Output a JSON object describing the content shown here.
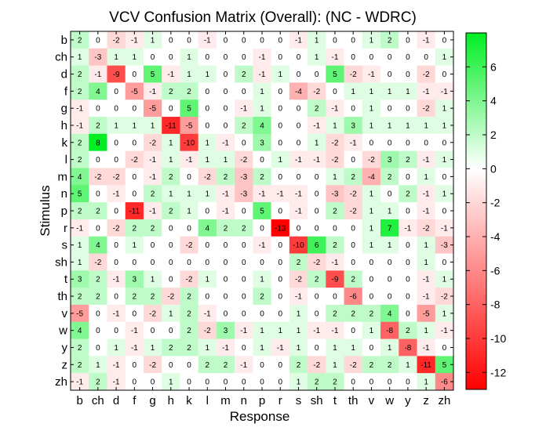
{
  "chart_data": {
    "type": "heatmap",
    "title": "VCV Confusion Matrix (Overall): (NC - WDRC)",
    "xlabel": "Response",
    "ylabel": "Stimulus",
    "rows": [
      "b",
      "ch",
      "d",
      "f",
      "g",
      "h",
      "k",
      "l",
      "m",
      "n",
      "p",
      "r",
      "s",
      "sh",
      "t",
      "th",
      "v",
      "w",
      "y",
      "z",
      "zh"
    ],
    "cols": [
      "b",
      "ch",
      "d",
      "f",
      "g",
      "h",
      "k",
      "l",
      "m",
      "n",
      "p",
      "r",
      "s",
      "sh",
      "t",
      "th",
      "v",
      "w",
      "y",
      "z",
      "zh"
    ],
    "values": [
      [
        2,
        0,
        -2,
        -1,
        1,
        0,
        0,
        -1,
        0,
        0,
        0,
        0,
        -1,
        1,
        0,
        0,
        1,
        2,
        0,
        -1,
        0
      ],
      [
        1,
        -3,
        1,
        1,
        0,
        0,
        1,
        0,
        0,
        0,
        -1,
        0,
        0,
        1,
        -1,
        0,
        0,
        0,
        0,
        0,
        1
      ],
      [
        2,
        -1,
        -9,
        0,
        5,
        -1,
        1,
        1,
        0,
        2,
        -1,
        1,
        0,
        0,
        5,
        -2,
        -1,
        0,
        0,
        -2,
        0
      ],
      [
        2,
        4,
        0,
        -5,
        -1,
        2,
        2,
        0,
        0,
        0,
        1,
        0,
        -4,
        -2,
        0,
        1,
        1,
        1,
        1,
        -1,
        -1
      ],
      [
        -1,
        0,
        0,
        0,
        -5,
        0,
        5,
        0,
        0,
        -1,
        1,
        0,
        0,
        2,
        -1,
        0,
        1,
        0,
        0,
        -2,
        1
      ],
      [
        -1,
        2,
        1,
        1,
        1,
        -11,
        -5,
        0,
        0,
        2,
        4,
        0,
        0,
        -1,
        1,
        3,
        1,
        1,
        1,
        1,
        1
      ],
      [
        2,
        8,
        0,
        0,
        -2,
        1,
        -10,
        1,
        -1,
        0,
        3,
        0,
        0,
        1,
        -2,
        -1,
        0,
        0,
        0,
        0,
        0
      ],
      [
        2,
        0,
        0,
        -2,
        -1,
        1,
        -1,
        1,
        1,
        -2,
        0,
        1,
        -1,
        -1,
        -2,
        0,
        -2,
        3,
        2,
        -1,
        1
      ],
      [
        4,
        -2,
        -2,
        0,
        -1,
        2,
        0,
        -2,
        2,
        -3,
        2,
        0,
        0,
        0,
        1,
        2,
        -4,
        2,
        0,
        1,
        0
      ],
      [
        5,
        0,
        -1,
        0,
        2,
        1,
        1,
        1,
        -1,
        -3,
        -1,
        -1,
        -1,
        0,
        -3,
        -2,
        1,
        0,
        2,
        -1,
        1
      ],
      [
        2,
        2,
        0,
        -11,
        -1,
        2,
        1,
        0,
        -1,
        0,
        5,
        0,
        -1,
        0,
        2,
        -2,
        1,
        1,
        0,
        -1,
        0
      ],
      [
        -1,
        0,
        -2,
        2,
        2,
        0,
        0,
        4,
        2,
        2,
        0,
        -13,
        0,
        0,
        0,
        0,
        1,
        7,
        -1,
        -2,
        -1
      ],
      [
        1,
        4,
        0,
        1,
        0,
        0,
        -2,
        0,
        0,
        0,
        -1,
        0,
        -10,
        6,
        2,
        0,
        1,
        1,
        0,
        1,
        -3
      ],
      [
        1,
        -2,
        0,
        0,
        0,
        0,
        0,
        0,
        0,
        0,
        0,
        0,
        2,
        -2,
        -1,
        0,
        0,
        0,
        0,
        1,
        0
      ],
      [
        3,
        2,
        -1,
        3,
        1,
        0,
        -2,
        1,
        0,
        0,
        1,
        0,
        -2,
        2,
        -9,
        2,
        0,
        0,
        0,
        -1,
        1
      ],
      [
        2,
        2,
        0,
        2,
        2,
        -2,
        2,
        0,
        0,
        0,
        2,
        0,
        -1,
        0,
        0,
        -6,
        0,
        0,
        0,
        -1,
        -2
      ],
      [
        -5,
        0,
        -1,
        0,
        -2,
        1,
        2,
        -1,
        0,
        0,
        0,
        0,
        1,
        0,
        2,
        2,
        2,
        4,
        0,
        -5,
        1
      ],
      [
        4,
        0,
        0,
        -1,
        0,
        0,
        2,
        -2,
        3,
        -1,
        1,
        1,
        1,
        -1,
        -1,
        0,
        1,
        -8,
        2,
        1,
        -1
      ],
      [
        2,
        0,
        1,
        -1,
        1,
        2,
        2,
        1,
        -1,
        0,
        1,
        -1,
        1,
        0,
        1,
        1,
        0,
        1,
        -8,
        -1,
        0
      ],
      [
        2,
        1,
        -1,
        0,
        -2,
        0,
        0,
        2,
        2,
        -1,
        0,
        0,
        2,
        -2,
        1,
        -2,
        2,
        2,
        1,
        -11,
        5
      ],
      [
        -1,
        2,
        -1,
        0,
        0,
        1,
        0,
        0,
        0,
        0,
        0,
        0,
        1,
        2,
        2,
        0,
        0,
        0,
        0,
        1,
        -6
      ]
    ],
    "colorbar": {
      "range": [
        -13,
        8
      ],
      "ticks": [
        6,
        4,
        2,
        0,
        -2,
        -4,
        -6,
        -8,
        -10,
        -12
      ],
      "negative_color": "#ff0000",
      "zero_color": "#ffffff",
      "positive_color": "#00ee22"
    },
    "grid": false
  }
}
